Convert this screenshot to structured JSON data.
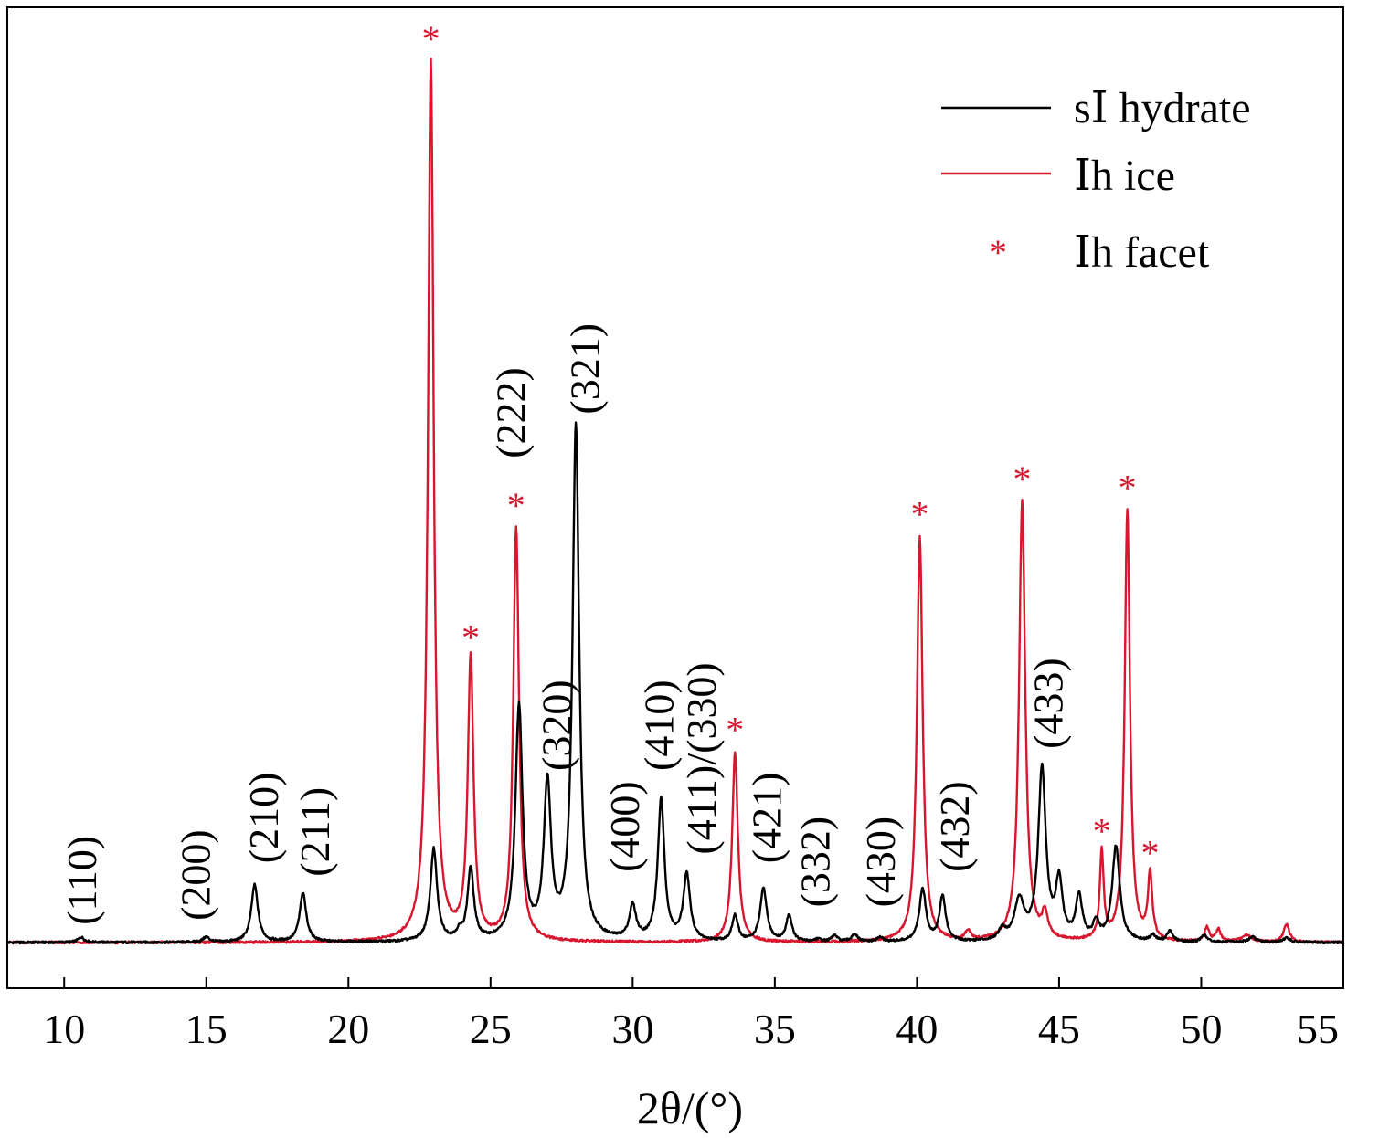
{
  "chart_data": {
    "type": "line",
    "xlabel": "2θ/(°)",
    "ylabel": "",
    "title": "",
    "xlim": [
      8,
      55
    ],
    "ylim": [
      0,
      100
    ],
    "xticks": [
      10,
      15,
      20,
      25,
      30,
      35,
      40,
      45,
      50,
      55
    ],
    "xtick_labels": [
      "10",
      "15",
      "20",
      "25",
      "30",
      "35",
      "40",
      "45",
      "50",
      "55"
    ],
    "yticks_shown": false,
    "grid": false,
    "legend_position": "top-right",
    "series": [
      {
        "name": "sⅠ hydrate",
        "color": "#000000",
        "baseline": 0,
        "peaks": [
          {
            "x": 10.6,
            "y": 0.6,
            "w": 0.13
          },
          {
            "x": 15.0,
            "y": 0.6,
            "w": 0.13
          },
          {
            "x": 16.7,
            "y": 6.5,
            "w": 0.14
          },
          {
            "x": 18.4,
            "y": 5.5,
            "w": 0.14
          },
          {
            "x": 23.0,
            "y": 10.5,
            "w": 0.14
          },
          {
            "x": 23.9,
            "y": 0.8,
            "w": 0.12
          },
          {
            "x": 24.3,
            "y": 8.2,
            "w": 0.13
          },
          {
            "x": 26.0,
            "y": 26.5,
            "w": 0.15
          },
          {
            "x": 27.0,
            "y": 17.5,
            "w": 0.15
          },
          {
            "x": 28.0,
            "y": 58.5,
            "w": 0.14
          },
          {
            "x": 30.0,
            "y": 3.8,
            "w": 0.14
          },
          {
            "x": 31.0,
            "y": 16.0,
            "w": 0.14
          },
          {
            "x": 31.9,
            "y": 7.5,
            "w": 0.14
          },
          {
            "x": 33.6,
            "y": 2.9,
            "w": 0.12
          },
          {
            "x": 34.6,
            "y": 6.0,
            "w": 0.14
          },
          {
            "x": 35.5,
            "y": 3.0,
            "w": 0.12
          },
          {
            "x": 36.5,
            "y": 0.3,
            "w": 0.12
          },
          {
            "x": 37.1,
            "y": 0.7,
            "w": 0.12
          },
          {
            "x": 37.8,
            "y": 0.9,
            "w": 0.12
          },
          {
            "x": 38.7,
            "y": 0.5,
            "w": 0.12
          },
          {
            "x": 40.2,
            "y": 5.9,
            "w": 0.14
          },
          {
            "x": 40.9,
            "y": 5.1,
            "w": 0.13
          },
          {
            "x": 43.0,
            "y": 1.2,
            "w": 0.15
          },
          {
            "x": 43.6,
            "y": 4.5,
            "w": 0.2
          },
          {
            "x": 44.4,
            "y": 19.5,
            "w": 0.16
          },
          {
            "x": 45.0,
            "y": 6.5,
            "w": 0.14
          },
          {
            "x": 45.7,
            "y": 5.0,
            "w": 0.14
          },
          {
            "x": 46.3,
            "y": 2.0,
            "w": 0.12
          },
          {
            "x": 47.0,
            "y": 10.8,
            "w": 0.16
          },
          {
            "x": 48.3,
            "y": 0.7,
            "w": 0.12
          },
          {
            "x": 48.9,
            "y": 1.2,
            "w": 0.12
          },
          {
            "x": 50.1,
            "y": 0.8,
            "w": 0.12
          },
          {
            "x": 51.8,
            "y": 0.6,
            "w": 0.15
          },
          {
            "x": 53.0,
            "y": 0.5,
            "w": 0.15
          }
        ]
      },
      {
        "name": "Ⅰh ice",
        "color": "#d7172f",
        "baseline": 0,
        "peaks": [
          {
            "x": 22.9,
            "y": 100.0,
            "w": 0.12
          },
          {
            "x": 24.3,
            "y": 32.0,
            "w": 0.12
          },
          {
            "x": 25.9,
            "y": 47.0,
            "w": 0.12
          },
          {
            "x": 33.6,
            "y": 21.5,
            "w": 0.12
          },
          {
            "x": 40.1,
            "y": 46.0,
            "w": 0.12
          },
          {
            "x": 41.8,
            "y": 1.0,
            "w": 0.12
          },
          {
            "x": 43.7,
            "y": 50.0,
            "w": 0.13
          },
          {
            "x": 44.5,
            "y": 2.8,
            "w": 0.12
          },
          {
            "x": 46.5,
            "y": 10.0,
            "w": 0.08
          },
          {
            "x": 47.4,
            "y": 49.0,
            "w": 0.11
          },
          {
            "x": 48.2,
            "y": 7.5,
            "w": 0.09
          },
          {
            "x": 50.2,
            "y": 1.6,
            "w": 0.1
          },
          {
            "x": 50.6,
            "y": 1.4,
            "w": 0.1
          },
          {
            "x": 51.6,
            "y": 0.8,
            "w": 0.2
          },
          {
            "x": 53.0,
            "y": 2.0,
            "w": 0.12
          }
        ]
      }
    ],
    "markers": [
      {
        "name": "Ⅰh facet",
        "symbol": "*",
        "color": "#d7172f",
        "x": [
          22.9,
          24.3,
          25.9,
          33.6,
          40.1,
          43.7,
          47.4,
          46.5,
          48.2
        ],
        "y": [
          100.0,
          32.0,
          47.0,
          21.5,
          46.0,
          50.0,
          49.0,
          10.0,
          7.5
        ]
      }
    ],
    "annotations": [
      {
        "text": "(110)",
        "x": 10.6,
        "y": 2.0
      },
      {
        "text": "(200)",
        "x": 14.6,
        "y": 2.5
      },
      {
        "text": "(210)",
        "x": 17.0,
        "y": 9.0
      },
      {
        "text": "(211)",
        "x": 18.8,
        "y": 7.5
      },
      {
        "text": "(222)",
        "x": 25.7,
        "y": 55.0
      },
      {
        "text": "(321)",
        "x": 28.3,
        "y": 60.0
      },
      {
        "text": "(320)",
        "x": 27.3,
        "y": 19.5
      },
      {
        "text": "(400)",
        "x": 29.7,
        "y": 8.0
      },
      {
        "text": "(410)",
        "x": 30.9,
        "y": 19.5
      },
      {
        "text": "(411)/(330)",
        "x": 32.4,
        "y": 10.0
      },
      {
        "text": "(421)",
        "x": 34.7,
        "y": 9.0
      },
      {
        "text": "(332)",
        "x": 36.4,
        "y": 4.0
      },
      {
        "text": "(430)",
        "x": 38.7,
        "y": 4.0
      },
      {
        "text": "(432)",
        "x": 41.3,
        "y": 8.0
      },
      {
        "text": "(433)",
        "x": 44.6,
        "y": 22.0
      }
    ]
  }
}
